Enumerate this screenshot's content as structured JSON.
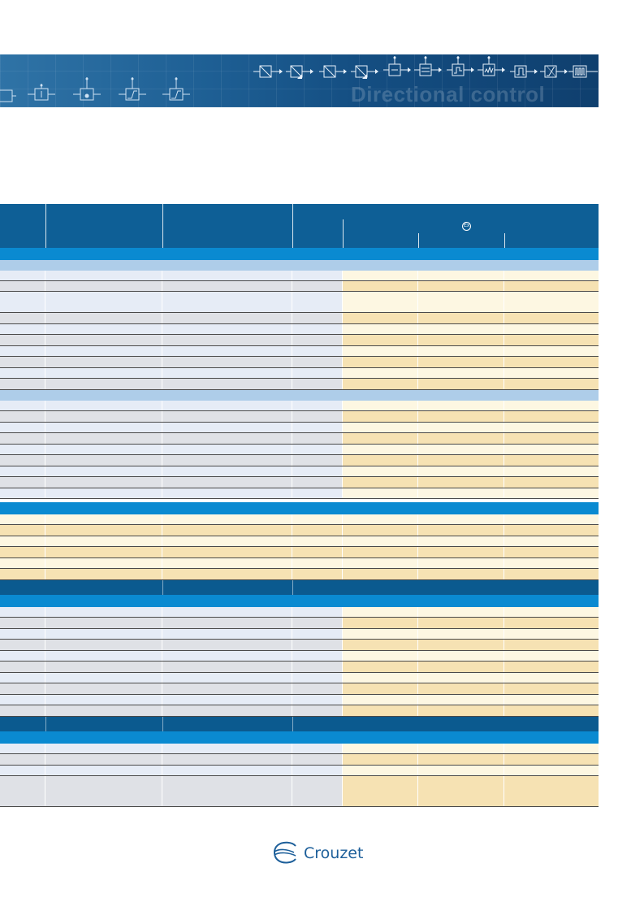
{
  "banner": {
    "title": "Directional control"
  },
  "footer": {
    "brand": "Crouzet"
  },
  "colors": {
    "header_blue": "#0e5f96",
    "section_blue": "#0a8ad1",
    "section_light": "#aecde9",
    "section_dark": "#0b5a8f",
    "row_grey_dark": "#dfe1e6",
    "row_grey_light": "#e6ecf6",
    "row_tan": "#f6e2b3",
    "row_cream": "#fdf7e2"
  }
}
